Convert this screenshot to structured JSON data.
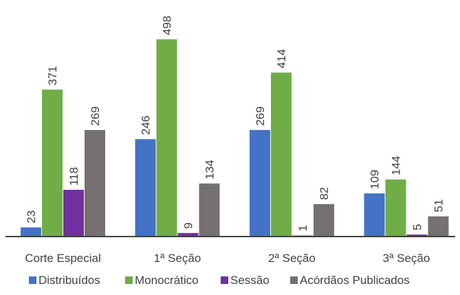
{
  "chart_data": {
    "type": "bar",
    "categories": [
      "Corte Especial",
      "1ª Seção",
      "2ª Seção",
      "3ª Seção"
    ],
    "series": [
      {
        "name": "Distribuídos",
        "color": "#4472C4",
        "values": [
          23,
          246,
          269,
          109
        ]
      },
      {
        "name": "Monocrático",
        "color": "#70AD47",
        "values": [
          371,
          498,
          414,
          144
        ]
      },
      {
        "name": "Sessão",
        "color": "#7030A0",
        "values": [
          118,
          9,
          1,
          5
        ]
      },
      {
        "name": "Acórdãos Publicados",
        "color": "#767171",
        "values": [
          269,
          134,
          82,
          51
        ]
      }
    ],
    "title": "",
    "xlabel": "",
    "ylabel": "",
    "ylim": [
      0,
      500
    ],
    "grid": false,
    "legend": "bottom",
    "data_labels": "rotated-vertical"
  }
}
